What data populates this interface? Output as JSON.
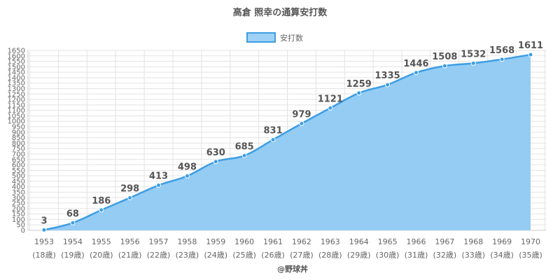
{
  "chart_data": {
    "type": "area",
    "title": "高倉 照幸の通算安打数",
    "legend": [
      "安打数"
    ],
    "legend_position": "top-center",
    "categories": [
      "1953",
      "1954",
      "1955",
      "1956",
      "1957",
      "1958",
      "1959",
      "1960",
      "1961",
      "1962",
      "1963",
      "1964",
      "1965",
      "1966",
      "1967",
      "1968",
      "1969",
      "1970"
    ],
    "age_labels": [
      "(18歳)",
      "(19歳)",
      "(20歳)",
      "(21歳)",
      "(22歳)",
      "(23歳)",
      "(24歳)",
      "(25歳)",
      "(26歳)",
      "(27歳)",
      "(28歳)",
      "(29歳)",
      "(30歳)",
      "(31歳)",
      "(32歳)",
      "(33歳)",
      "(34歳)",
      "(35歳)"
    ],
    "series": [
      {
        "name": "安打数",
        "values": [
          3,
          68,
          186,
          298,
          413,
          498,
          630,
          685,
          831,
          979,
          1121,
          1259,
          1335,
          1446,
          1508,
          1532,
          1568,
          1611
        ]
      }
    ],
    "ylim": [
      0,
      1650
    ],
    "ytick_step": 50,
    "grid": true,
    "line_color": "#3d9ee4",
    "fill_color": "#8ec9f3"
  },
  "credit": "@野球丼"
}
